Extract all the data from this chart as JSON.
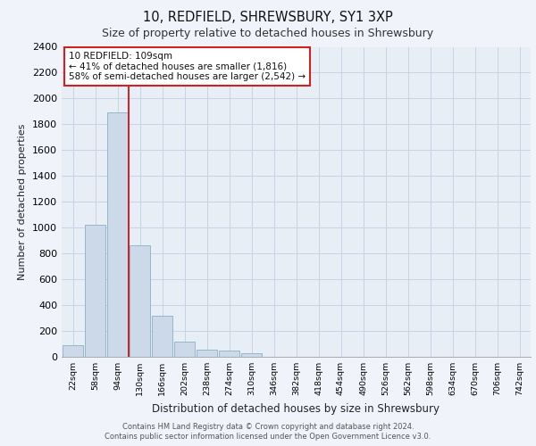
{
  "title1": "10, REDFIELD, SHREWSBURY, SY1 3XP",
  "title2": "Size of property relative to detached houses in Shrewsbury",
  "xlabel": "Distribution of detached houses by size in Shrewsbury",
  "ylabel": "Number of detached properties",
  "categories": [
    "22sqm",
    "58sqm",
    "94sqm",
    "130sqm",
    "166sqm",
    "202sqm",
    "238sqm",
    "274sqm",
    "310sqm",
    "346sqm",
    "382sqm",
    "418sqm",
    "454sqm",
    "490sqm",
    "526sqm",
    "562sqm",
    "598sqm",
    "634sqm",
    "670sqm",
    "706sqm",
    "742sqm"
  ],
  "bar_values": [
    90,
    1020,
    1890,
    860,
    320,
    115,
    55,
    45,
    28,
    0,
    0,
    0,
    0,
    0,
    0,
    0,
    0,
    0,
    0,
    0,
    0
  ],
  "bar_color": "#ccd9e8",
  "bar_edge_color": "#8aafc8",
  "highlight_line_color": "#cc2222",
  "annotation_box_color": "#cc2222",
  "annotation_text_line1": "10 REDFIELD: 109sqm",
  "annotation_text_line2": "← 41% of detached houses are smaller (1,816)",
  "annotation_text_line3": "58% of semi-detached houses are larger (2,542) →",
  "ylim": [
    0,
    2400
  ],
  "yticks": [
    0,
    200,
    400,
    600,
    800,
    1000,
    1200,
    1400,
    1600,
    1800,
    2000,
    2200,
    2400
  ],
  "grid_color": "#c8d4e4",
  "plot_bg_color": "#e8eef6",
  "fig_bg_color": "#f0f4fa",
  "footer_line1": "Contains HM Land Registry data © Crown copyright and database right 2024.",
  "footer_line2": "Contains public sector information licensed under the Open Government Licence v3.0."
}
